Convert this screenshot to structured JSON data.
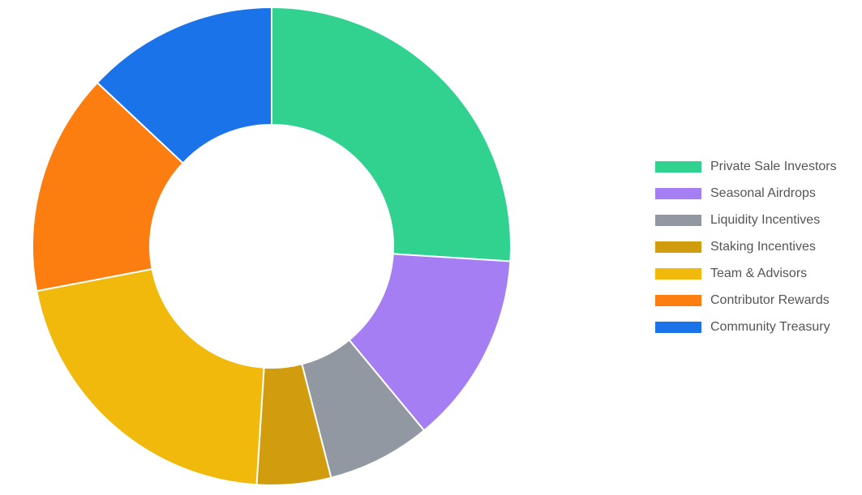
{
  "chart_data": {
    "type": "donut",
    "categories": [
      "Private Sale Investors",
      "Seasonal Airdrops",
      "Liquidity Incentives",
      "Staking Incentives",
      "Team & Advisors",
      "Contributor Rewards",
      "Community Treasury"
    ],
    "values": [
      26,
      13,
      7,
      5,
      21,
      15,
      13
    ],
    "colors": [
      "#31d190",
      "#a57ef4",
      "#9198a2",
      "#d19c0e",
      "#f0b90b",
      "#fd7e10",
      "#1a73e8"
    ],
    "legend": "right"
  }
}
